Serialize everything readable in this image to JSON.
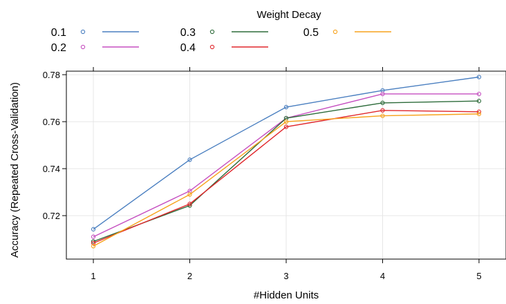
{
  "chart_data": {
    "type": "line",
    "title": "",
    "xlabel": "#Hidden Units",
    "ylabel": "Accuracy (Repeated Cross-Validation)",
    "x": [
      1,
      2,
      3,
      4,
      5
    ],
    "xlim": [
      0.72,
      5.28
    ],
    "ylim": [
      0.7015,
      0.7815
    ],
    "yticks": [
      0.72,
      0.74,
      0.76,
      0.78
    ],
    "ytick_labels": [
      "0.72",
      "0.74",
      "0.76",
      "0.78"
    ],
    "xticks": [
      1,
      2,
      3,
      4,
      5
    ],
    "xtick_labels": [
      "1",
      "2",
      "3",
      "4",
      "5"
    ],
    "grid": true,
    "legend_title": "Weight Decay",
    "legend_placement": "top",
    "series": [
      {
        "name": "0.1",
        "color": "#4a7fc0",
        "values": [
          0.7142,
          0.7438,
          0.7662,
          0.7733,
          0.779
        ]
      },
      {
        "name": "0.2",
        "color": "#c54fc0",
        "values": [
          0.711,
          0.7305,
          0.7615,
          0.7718,
          0.7718
        ]
      },
      {
        "name": "0.3",
        "color": "#2d6b3a",
        "values": [
          0.709,
          0.7243,
          0.7615,
          0.768,
          0.7688
        ]
      },
      {
        "name": "0.4",
        "color": "#e0262b",
        "values": [
          0.7083,
          0.725,
          0.7578,
          0.7648,
          0.7642
        ]
      },
      {
        "name": "0.5",
        "color": "#f7a21b",
        "values": [
          0.707,
          0.729,
          0.76,
          0.7625,
          0.7633
        ]
      }
    ]
  }
}
